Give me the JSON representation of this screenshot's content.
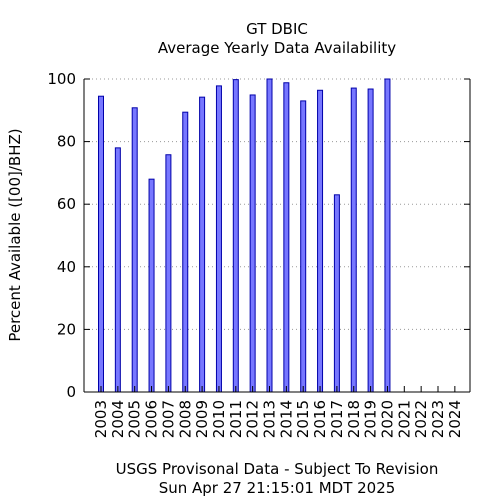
{
  "chart_data": {
    "type": "bar",
    "title": "GT DBIC",
    "subtitle": "Average Yearly Data Availability",
    "xlabel": "",
    "ylabel": "Percent Available ([00]/BHZ)",
    "ylim": [
      0,
      100
    ],
    "yticks": [
      0,
      20,
      40,
      60,
      80,
      100
    ],
    "grid": "horizontal dotted",
    "categories": [
      "2003",
      "2004",
      "2005",
      "2006",
      "2007",
      "2008",
      "2009",
      "2010",
      "2011",
      "2012",
      "2013",
      "2014",
      "2015",
      "2016",
      "2017",
      "2018",
      "2019",
      "2020",
      "2021",
      "2022",
      "2023",
      "2024"
    ],
    "values": [
      94.5,
      78,
      90.8,
      68,
      75.8,
      89.4,
      94.2,
      97.8,
      99.8,
      94.9,
      100,
      98.8,
      93,
      96.4,
      63,
      97.1,
      96.8,
      100,
      null,
      null,
      null,
      null
    ],
    "bar_color": "#7777ff",
    "bar_edge_color": "#0000aa"
  },
  "footer": {
    "line1": "USGS Provisonal Data - Subject To Revision",
    "line2": "Sun Apr 27 21:15:01 MDT 2025"
  }
}
